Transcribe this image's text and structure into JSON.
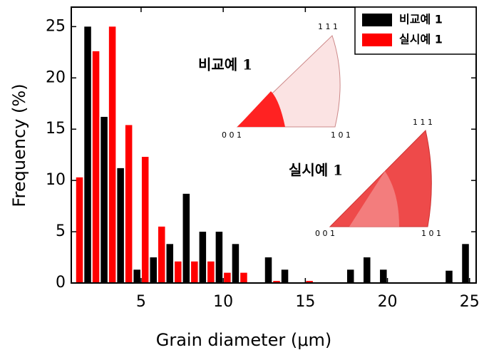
{
  "chart_data": {
    "type": "bar",
    "x_label": "Grain diameter (μm)",
    "y_label": "Frequency (%)",
    "x": [
      1.5,
      2.5,
      3.5,
      4.5,
      5.5,
      6.5,
      7.5,
      8.5,
      9.5,
      10.5,
      11.5,
      12.5,
      13.5,
      14.5,
      15.5,
      16.5,
      17.5,
      18.5,
      19.5,
      20.5,
      21.5,
      22.5,
      23.5,
      24.5
    ],
    "series": [
      {
        "name": "비교예 1",
        "color": "#000000",
        "values": [
          25,
          16.2,
          11.2,
          1.3,
          2.5,
          3.8,
          8.7,
          5,
          5,
          3.8,
          0,
          2.5,
          1.3,
          0,
          0,
          0,
          1.3,
          2.5,
          1.3,
          0,
          0,
          0,
          1.2,
          3.8
        ]
      },
      {
        "name": "실시예 1",
        "color": "#ff0000",
        "values": [
          10.3,
          22.6,
          25,
          15.4,
          12.3,
          5.5,
          2.1,
          2.1,
          2.1,
          1,
          1,
          0,
          0.2,
          0,
          0.2,
          0,
          0,
          0,
          0,
          0,
          0,
          0,
          0,
          0
        ]
      }
    ],
    "xlim": [
      0.75,
      25.4
    ],
    "xticks": [
      5,
      10,
      15,
      20,
      25
    ],
    "ylim": [
      0,
      26.9
    ],
    "yticks": [
      0,
      5,
      10,
      15,
      20,
      25
    ],
    "legend": "top-right",
    "insets": [
      {
        "label": "비교예 1",
        "corners": [
          "1 1 1",
          "0 0 1",
          "1 0 1"
        ]
      },
      {
        "label": "실시예 1",
        "corners": [
          "1 1 1",
          "0 0 1",
          "1 0 1"
        ]
      }
    ]
  }
}
